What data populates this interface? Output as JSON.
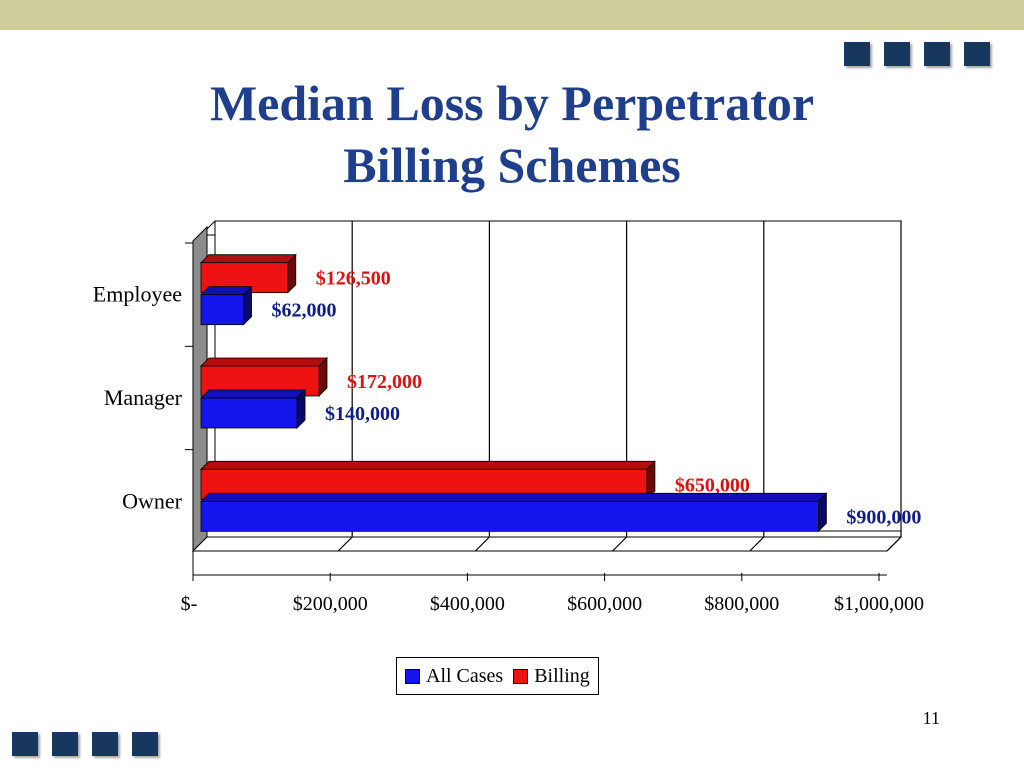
{
  "colors": {
    "band": "#cfcd9c",
    "squares": "#17375e",
    "title": "#1f3f8c",
    "all_cases": "#1515ee",
    "billing": "#ee1212",
    "all_cases_label": "#0f1d8c",
    "billing_label": "#e01010"
  },
  "title": {
    "line1": "Median Loss by Perpetrator",
    "line2": "Billing Schemes"
  },
  "page_number": "11",
  "chart_data": {
    "type": "bar",
    "orientation": "horizontal",
    "categories": [
      "Employee",
      "Manager",
      "Owner"
    ],
    "series": [
      {
        "name": "All Cases",
        "values": [
          62000,
          140000,
          900000
        ],
        "labels": [
          "$62,000",
          "$140,000",
          "$900,000"
        ]
      },
      {
        "name": "Billing",
        "values": [
          126500,
          172000,
          650000
        ],
        "labels": [
          "$126,500",
          "$172,000",
          "$650,000"
        ]
      }
    ],
    "xlim": [
      0,
      1000000
    ],
    "x_ticks": [
      0,
      200000,
      400000,
      600000,
      800000,
      1000000
    ],
    "x_tick_labels": [
      "$-",
      "$200,000",
      "$400,000",
      "$600,000",
      "$800,000",
      "$1,000,000"
    ],
    "grid": "vertical",
    "legend": "bottom"
  }
}
